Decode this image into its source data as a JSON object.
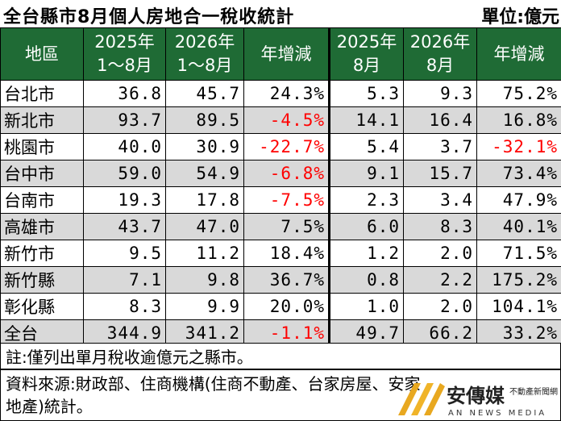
{
  "title": "全台縣市8月個人房地合一稅收統計",
  "unit": "單位:億元",
  "headers": {
    "region": "地區",
    "ytd2025": [
      "2025年",
      "1～8月"
    ],
    "ytd2026": [
      "2026年",
      "1～8月"
    ],
    "ytd_change": "年增減",
    "m2025": [
      "2025年",
      "8月"
    ],
    "m2026": [
      "2026年",
      "8月"
    ],
    "m_change": "年增減"
  },
  "rows": [
    {
      "region": "台北市",
      "a": "36.8",
      "b": "45.7",
      "c": "24.3%",
      "d": "5.3",
      "e": "9.3",
      "f": "75.2%"
    },
    {
      "region": "新北市",
      "a": "93.7",
      "b": "89.5",
      "c": "-4.5%",
      "d": "14.1",
      "e": "16.4",
      "f": "16.8%"
    },
    {
      "region": "桃園市",
      "a": "40.0",
      "b": "30.9",
      "c": "-22.7%",
      "d": "5.4",
      "e": "3.7",
      "f": "-32.1%"
    },
    {
      "region": "台中市",
      "a": "59.0",
      "b": "54.9",
      "c": "-6.8%",
      "d": "9.1",
      "e": "15.7",
      "f": "73.4%"
    },
    {
      "region": "台南市",
      "a": "19.3",
      "b": "17.8",
      "c": "-7.5%",
      "d": "2.3",
      "e": "3.4",
      "f": "47.9%"
    },
    {
      "region": "高雄市",
      "a": "43.7",
      "b": "47.0",
      "c": "7.5%",
      "d": "6.0",
      "e": "8.3",
      "f": "40.1%"
    },
    {
      "region": "新竹市",
      "a": "9.5",
      "b": "11.2",
      "c": "18.4%",
      "d": "1.2",
      "e": "2.0",
      "f": "71.5%"
    },
    {
      "region": "新竹縣",
      "a": "7.1",
      "b": "9.8",
      "c": "36.7%",
      "d": "0.8",
      "e": "2.2",
      "f": "175.2%"
    },
    {
      "region": "彰化縣",
      "a": "8.3",
      "b": "9.9",
      "c": "20.0%",
      "d": "1.0",
      "e": "2.0",
      "f": "104.1%"
    },
    {
      "region": "全台",
      "a": "344.9",
      "b": "341.2",
      "c": "-1.1%",
      "d": "49.7",
      "e": "66.2",
      "f": "33.2%"
    }
  ],
  "note": "註:僅列出單月稅收逾億元之縣市。",
  "source_line1": "資料來源:財政部、住商機構(住商不動產、台家房屋、安家",
  "source_line2": "地產)統計。",
  "logo": {
    "name": "安傳媒",
    "sub": "不動產新聞網",
    "en": "AN NEWS MEDIA"
  },
  "colors": {
    "header_bg": "#1f6b35",
    "negative": "#ff0000",
    "stripe": "#d9d9d9",
    "logo_gold": "#e8a820"
  }
}
